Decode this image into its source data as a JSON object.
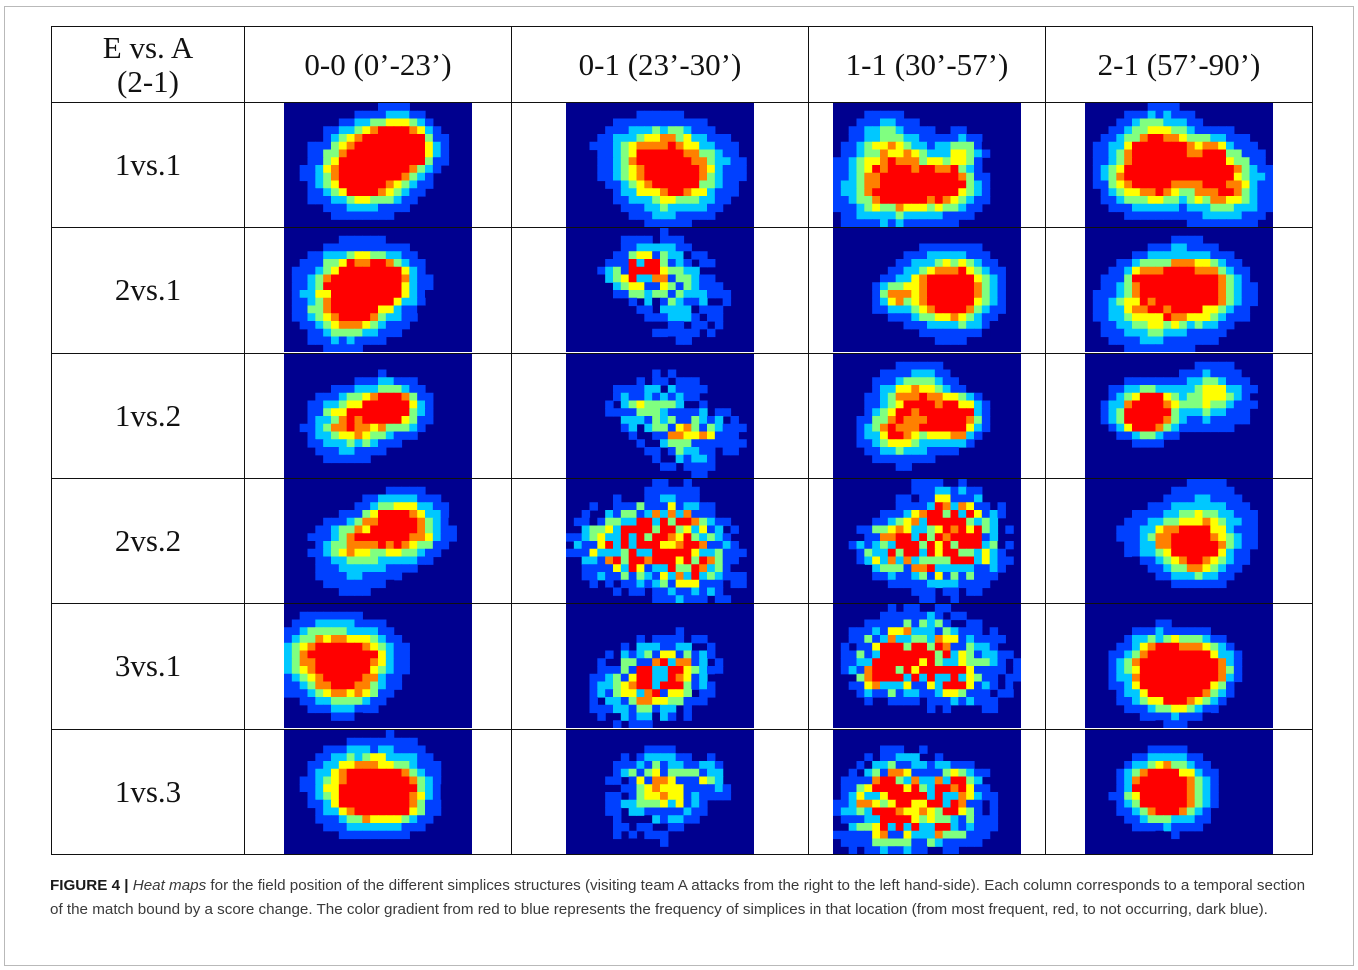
{
  "figure": {
    "corner_header_line1": "E vs. A",
    "corner_header_line2": "(2-1)",
    "column_headers": [
      "0-0 (0’-23’)",
      "0-1 (23’-30’)",
      "1-1 (30’-57’)",
      "2-1 (57’-90’)"
    ],
    "rows": [
      {
        "label": "1vs.1"
      },
      {
        "label": "2vs.1"
      },
      {
        "label": "1vs.2"
      },
      {
        "label": "2vs.2"
      },
      {
        "label": "3vs.1"
      },
      {
        "label": "1vs.3"
      }
    ],
    "heatmap_colormap": [
      "#00008f",
      "#0040ff",
      "#00c8ff",
      "#80ff80",
      "#ffff00",
      "#ff8000",
      "#ff0000"
    ],
    "background_color": "#00008f"
  },
  "caption": {
    "label": "FIGURE 4 |",
    "italic": "Heat maps",
    "text": " for the field position of the different simplices structures (visiting team A attacks from the right to the left hand-side). Each column corresponds to a temporal section of the match bound by a score change. The color gradient from red to blue represents the frequency of simplices in that location (from most frequent, red, to not occurring, dark blue)."
  }
}
